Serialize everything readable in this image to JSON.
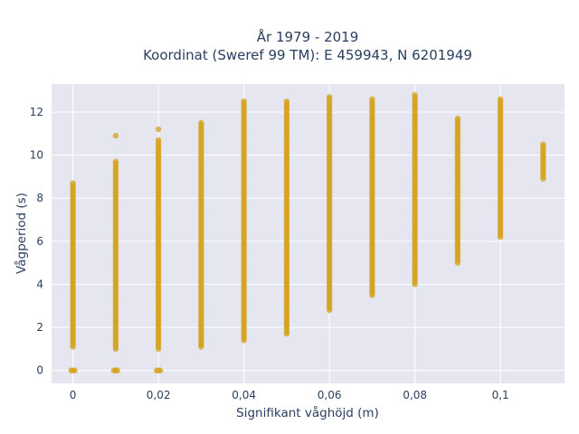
{
  "chart_data": {
    "type": "scatter",
    "title_lines": [
      "År 1979 - 2019",
      "Koordinat (Sweref 99 TM): E 459943, N 6201949"
    ],
    "xlabel": "Signifikant våghöjd (m)",
    "ylabel": "Vågperiod (s)",
    "xlim": [
      -0.005,
      0.115
    ],
    "ylim": [
      -0.6,
      13.3
    ],
    "x_ticks": [
      0,
      0.02,
      0.04,
      0.06,
      0.08,
      0.1
    ],
    "x_tick_labels": [
      "0",
      "0,02",
      "0,04",
      "0,06",
      "0,08",
      "0,1"
    ],
    "y_ticks": [
      0,
      2,
      4,
      6,
      8,
      10,
      12
    ],
    "y_tick_labels": [
      "0",
      "2",
      "4",
      "6",
      "8",
      "10",
      "12"
    ],
    "grid": true,
    "legend": "none",
    "colors": {
      "marker": "#d4a21c",
      "plot_bg": "#e5e6f0",
      "grid": "#ffffff",
      "text": "#2a3f5f"
    },
    "series": [
      {
        "columns": [
          {
            "x": 0.0,
            "y_min": 1.1,
            "y_max": 8.7,
            "extra_y": [
              0.0
            ]
          },
          {
            "x": 0.01,
            "y_min": 1.0,
            "y_max": 9.7,
            "extra_y": [
              0.0,
              10.9
            ]
          },
          {
            "x": 0.02,
            "y_min": 1.0,
            "y_max": 10.7,
            "extra_y": [
              0.0,
              11.2
            ]
          },
          {
            "x": 0.03,
            "y_min": 1.1,
            "y_max": 11.5,
            "extra_y": []
          },
          {
            "x": 0.04,
            "y_min": 1.4,
            "y_max": 12.5,
            "extra_y": []
          },
          {
            "x": 0.05,
            "y_min": 1.7,
            "y_max": 12.5,
            "extra_y": []
          },
          {
            "x": 0.06,
            "y_min": 2.8,
            "y_max": 12.7,
            "extra_y": []
          },
          {
            "x": 0.07,
            "y_min": 3.5,
            "y_max": 12.6,
            "extra_y": []
          },
          {
            "x": 0.08,
            "y_min": 4.0,
            "y_max": 12.8,
            "extra_y": []
          },
          {
            "x": 0.09,
            "y_min": 5.0,
            "y_max": 11.7,
            "extra_y": []
          },
          {
            "x": 0.1,
            "y_min": 6.2,
            "y_max": 12.6,
            "extra_y": []
          },
          {
            "x": 0.11,
            "y_min": 8.9,
            "y_max": 10.5,
            "extra_y": []
          }
        ]
      }
    ]
  }
}
